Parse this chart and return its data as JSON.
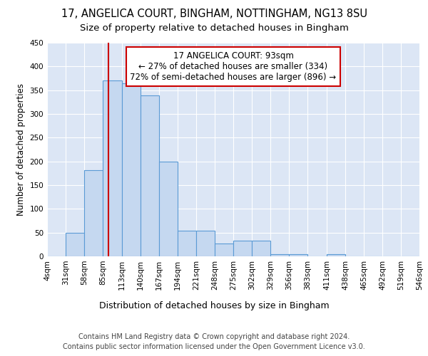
{
  "title1": "17, ANGELICA COURT, BINGHAM, NOTTINGHAM, NG13 8SU",
  "title2": "Size of property relative to detached houses in Bingham",
  "xlabel": "Distribution of detached houses by size in Bingham",
  "ylabel": "Number of detached properties",
  "bin_edges": [
    4,
    31,
    58,
    85,
    113,
    140,
    167,
    194,
    221,
    248,
    275,
    302,
    329,
    356,
    383,
    411,
    438,
    465,
    492,
    519,
    546
  ],
  "bar_heights": [
    0,
    49,
    181,
    370,
    365,
    339,
    199,
    54,
    54,
    27,
    33,
    33,
    5,
    5,
    0,
    5,
    0,
    0,
    0,
    0
  ],
  "bar_color": "#c5d8f0",
  "bar_edge_color": "#5b9bd5",
  "background_color": "#dce6f5",
  "grid_color": "#ffffff",
  "property_line_x": 93,
  "property_line_color": "#cc0000",
  "annotation_text": "17 ANGELICA COURT: 93sqm\n← 27% of detached houses are smaller (334)\n72% of semi-detached houses are larger (896) →",
  "annotation_box_color": "#ffffff",
  "annotation_box_edge_color": "#cc0000",
  "footnote1": "Contains HM Land Registry data © Crown copyright and database right 2024.",
  "footnote2": "Contains public sector information licensed under the Open Government Licence v3.0.",
  "ylim": [
    0,
    450
  ],
  "yticks": [
    0,
    50,
    100,
    150,
    200,
    250,
    300,
    350,
    400,
    450
  ],
  "title1_fontsize": 10.5,
  "title2_fontsize": 9.5,
  "xlabel_fontsize": 9,
  "ylabel_fontsize": 8.5,
  "tick_fontsize": 7.5,
  "annotation_fontsize": 8.5,
  "footnote_fontsize": 7
}
